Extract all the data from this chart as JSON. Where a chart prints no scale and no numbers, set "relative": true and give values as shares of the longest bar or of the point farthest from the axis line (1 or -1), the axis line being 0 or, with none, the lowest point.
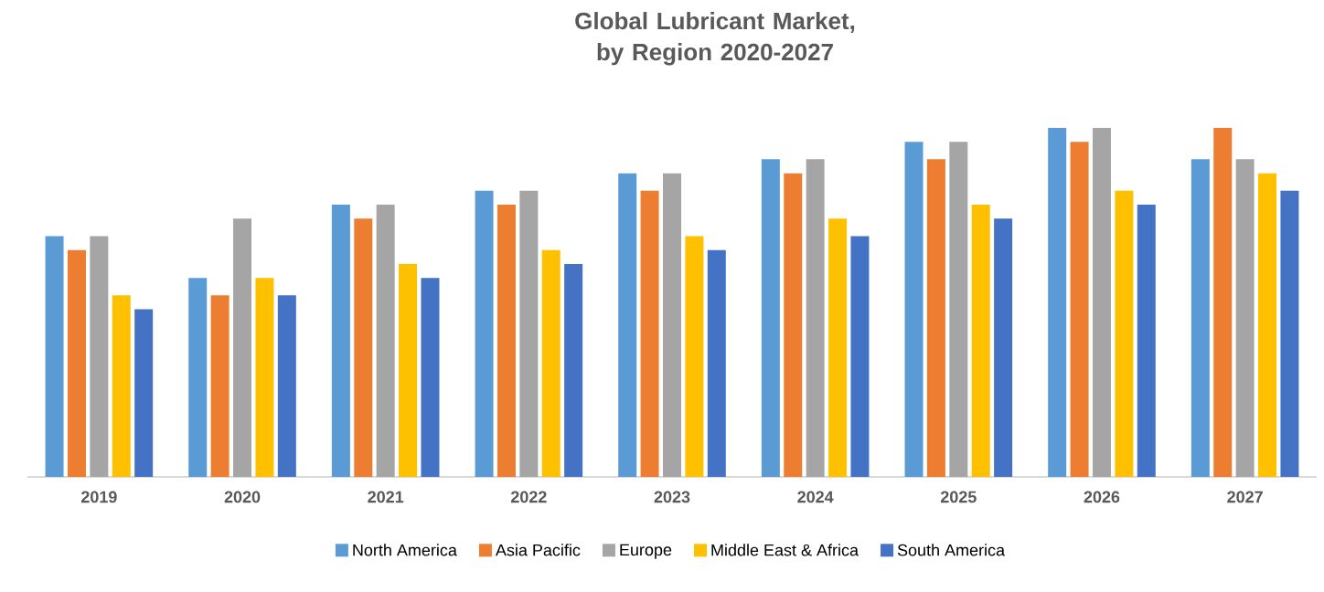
{
  "chart_data": {
    "type": "bar",
    "title": "Global Lubricant Market, by Region 2020-2027",
    "relative": true,
    "legend": "bottom",
    "categories": [
      "2019",
      "2020",
      "2021",
      "2022",
      "2023",
      "2024",
      "2025",
      "2026",
      "2027"
    ],
    "series": [
      {
        "name": "North America",
        "color": "#5b9bd5",
        "values": [
          0.69,
          0.57,
          0.78,
          0.82,
          0.87,
          0.91,
          0.96,
          1,
          0.91
        ]
      },
      {
        "name": "Asia Pacific",
        "color": "#ed7d31",
        "values": [
          0.65,
          0.52,
          0.74,
          0.78,
          0.82,
          0.87,
          0.91,
          0.96,
          1
        ]
      },
      {
        "name": "Europe",
        "color": "#a5a5a5",
        "values": [
          0.69,
          0.74,
          0.78,
          0.82,
          0.87,
          0.91,
          0.96,
          1,
          0.91
        ]
      },
      {
        "name": "Middle East & Africa",
        "color": "#ffc000",
        "values": [
          0.52,
          0.57,
          0.61,
          0.65,
          0.69,
          0.74,
          0.78,
          0.82,
          0.87
        ]
      },
      {
        "name": "South America",
        "color": "#4472c4",
        "values": [
          0.48,
          0.52,
          0.57,
          0.61,
          0.65,
          0.69,
          0.74,
          0.78,
          0.82
        ]
      }
    ]
  }
}
